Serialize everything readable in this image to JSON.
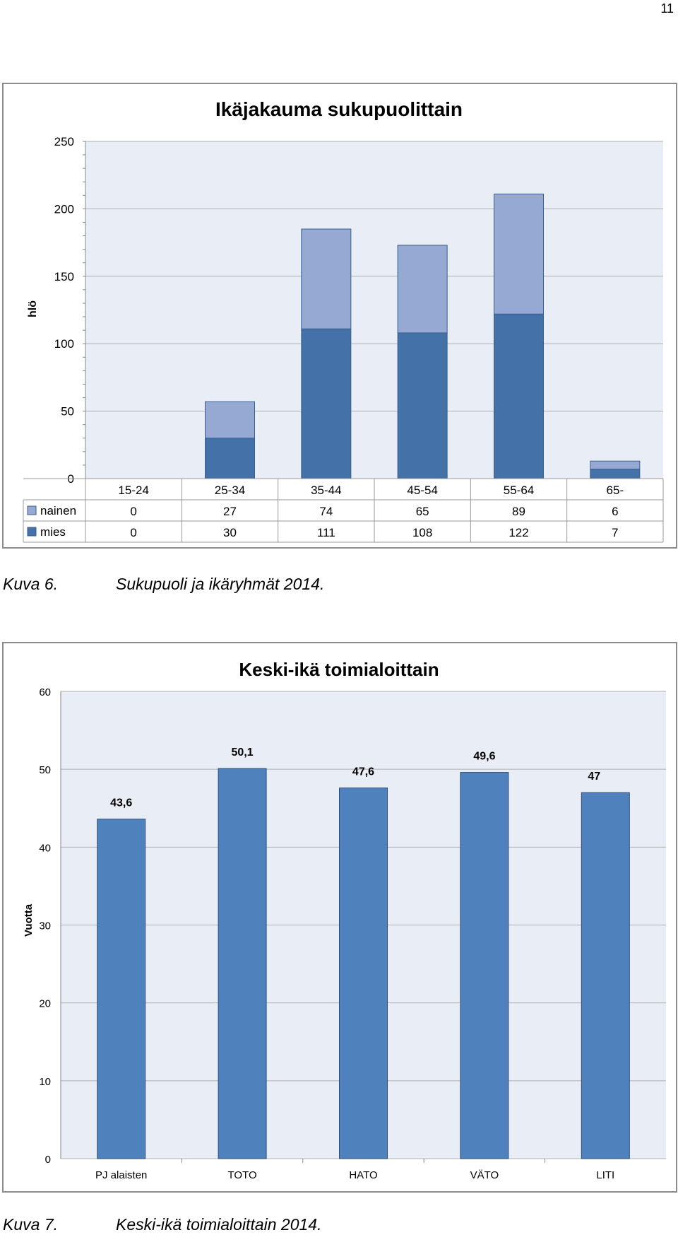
{
  "page_number": "11",
  "captions": [
    {
      "label": "Kuva 6.",
      "text": "Sukupuoli ja ikäryhmät 2014."
    },
    {
      "label": "Kuva 7.",
      "text": "Keski-ikä toimialoittain 2014."
    }
  ],
  "colors": {
    "nainen": "#95a9d2",
    "mies": "#4472a8",
    "bar": "#4f81bd",
    "plot_bg": "#e9edf5",
    "grid": "#b0b0b0"
  },
  "chart_data": [
    {
      "type": "bar",
      "stacked": true,
      "title": "Ikäjakauma sukupuolittain",
      "ylabel": "hlö",
      "xlabel": "",
      "ylim": [
        0,
        250
      ],
      "yticks": [
        0,
        50,
        100,
        150,
        200,
        250
      ],
      "categories": [
        "15-24",
        "25-34",
        "35-44",
        "45-54",
        "55-64",
        "65-"
      ],
      "series": [
        {
          "name": "mies",
          "values": [
            0,
            30,
            111,
            108,
            122,
            7
          ]
        },
        {
          "name": "nainen",
          "values": [
            0,
            27,
            74,
            65,
            89,
            6
          ]
        }
      ],
      "data_table": true,
      "legend": "data-table"
    },
    {
      "type": "bar",
      "title": "Keski-ikä toimialoittain",
      "ylabel": "Vuotta",
      "xlabel": "",
      "ylim": [
        0,
        60
      ],
      "yticks": [
        0,
        10,
        20,
        30,
        40,
        50,
        60
      ],
      "categories": [
        "PJ alaisten",
        "TOTO",
        "HATO",
        "VÄTO",
        "LITI"
      ],
      "values": [
        43.6,
        50.1,
        47.6,
        49.6,
        47
      ],
      "data_labels": [
        "43,6",
        "50,1",
        "47,6",
        "49,6",
        "47"
      ]
    }
  ]
}
